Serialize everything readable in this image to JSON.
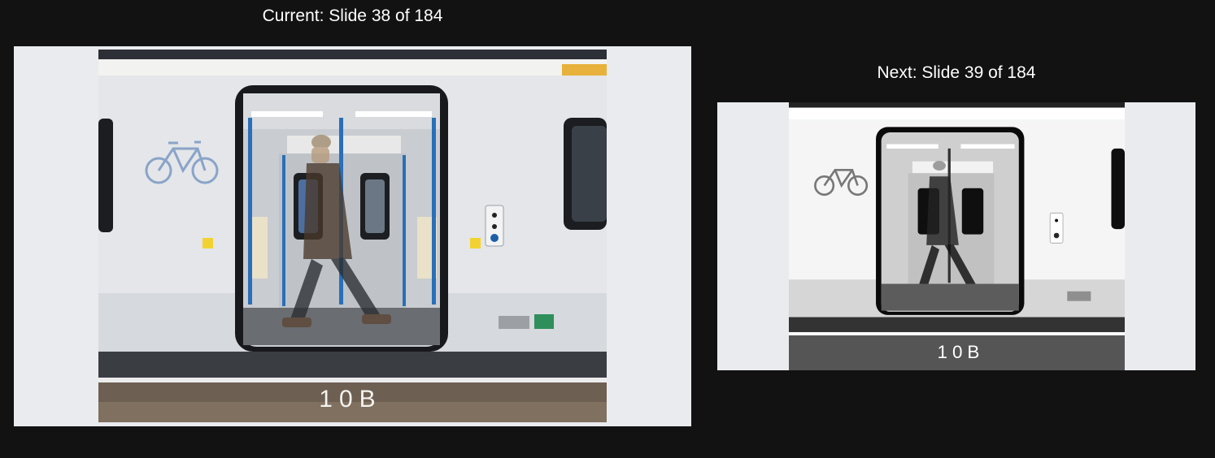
{
  "presenter_view": {
    "current": {
      "label": "Current: Slide 38 of 184",
      "image_description_icon": "train-door-photo"
    },
    "next": {
      "label": "Next: Slide 39 of 184",
      "image_description_icon": "train-door-photo-monochrome"
    }
  },
  "photo": {
    "platform_marking": "10B"
  },
  "colors": {
    "background": "#121212",
    "slide_background": "#eaebef",
    "train_body": "#e4e6e9",
    "door_pole_blue": "#2a6fb8",
    "bike_icon_blue": "#8aa4c8"
  }
}
